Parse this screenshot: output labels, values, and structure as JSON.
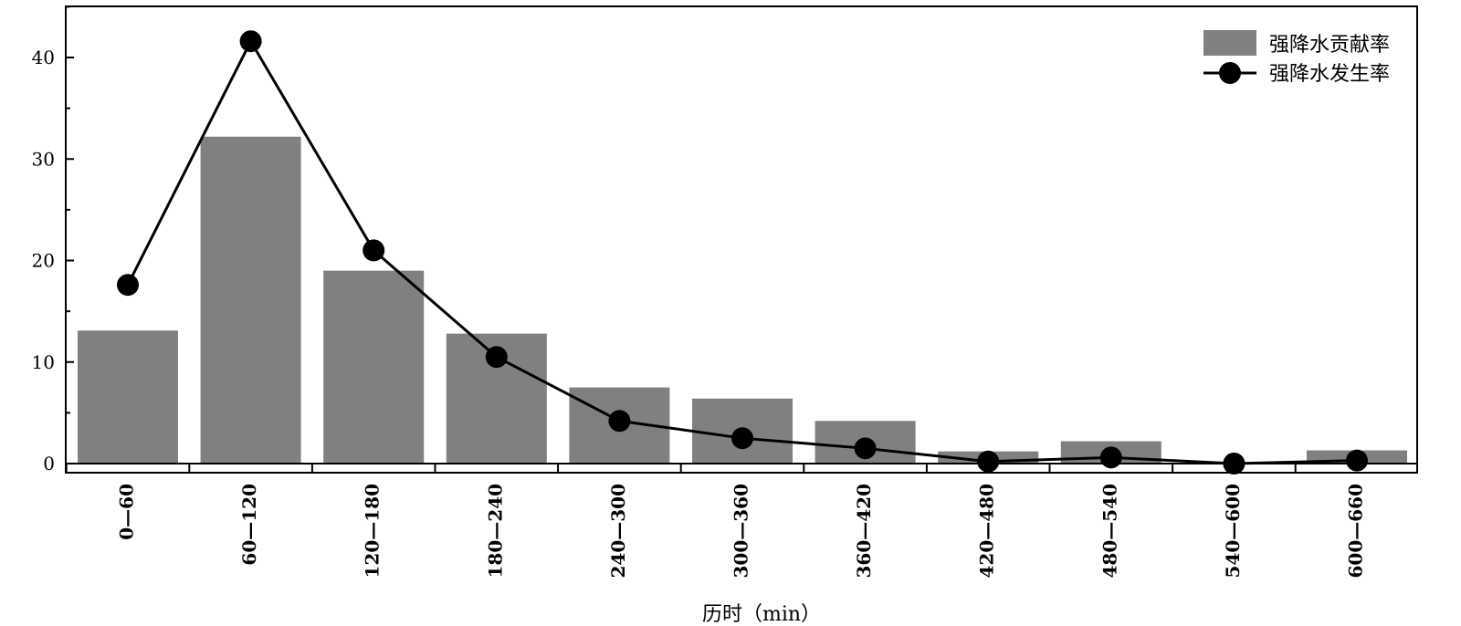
{
  "chart_data": {
    "type": "bar",
    "title": "",
    "xlabel": "历时（min）",
    "ylabel": "",
    "ylim": [
      0,
      41
    ],
    "yticks": [
      0,
      10,
      20,
      30,
      40
    ],
    "categories": [
      "0—60",
      "60—120",
      "120—180",
      "180—240",
      "240—300",
      "300—360",
      "360—420",
      "420—480",
      "480—540",
      "540—600",
      "600—660"
    ],
    "series": [
      {
        "name": "强降水贡献率",
        "type": "bar",
        "color": "#808080",
        "values": [
          13.1,
          32.2,
          19.0,
          12.8,
          7.5,
          6.4,
          4.2,
          1.2,
          2.2,
          0.0,
          1.3
        ]
      },
      {
        "name": "强降水发生率",
        "type": "line",
        "color": "#000000",
        "marker": "circle",
        "values": [
          17.6,
          41.6,
          21.0,
          10.5,
          4.2,
          2.5,
          1.5,
          0.2,
          0.6,
          0.0,
          0.3
        ]
      }
    ],
    "legend_position": "top-right",
    "grid": false
  }
}
